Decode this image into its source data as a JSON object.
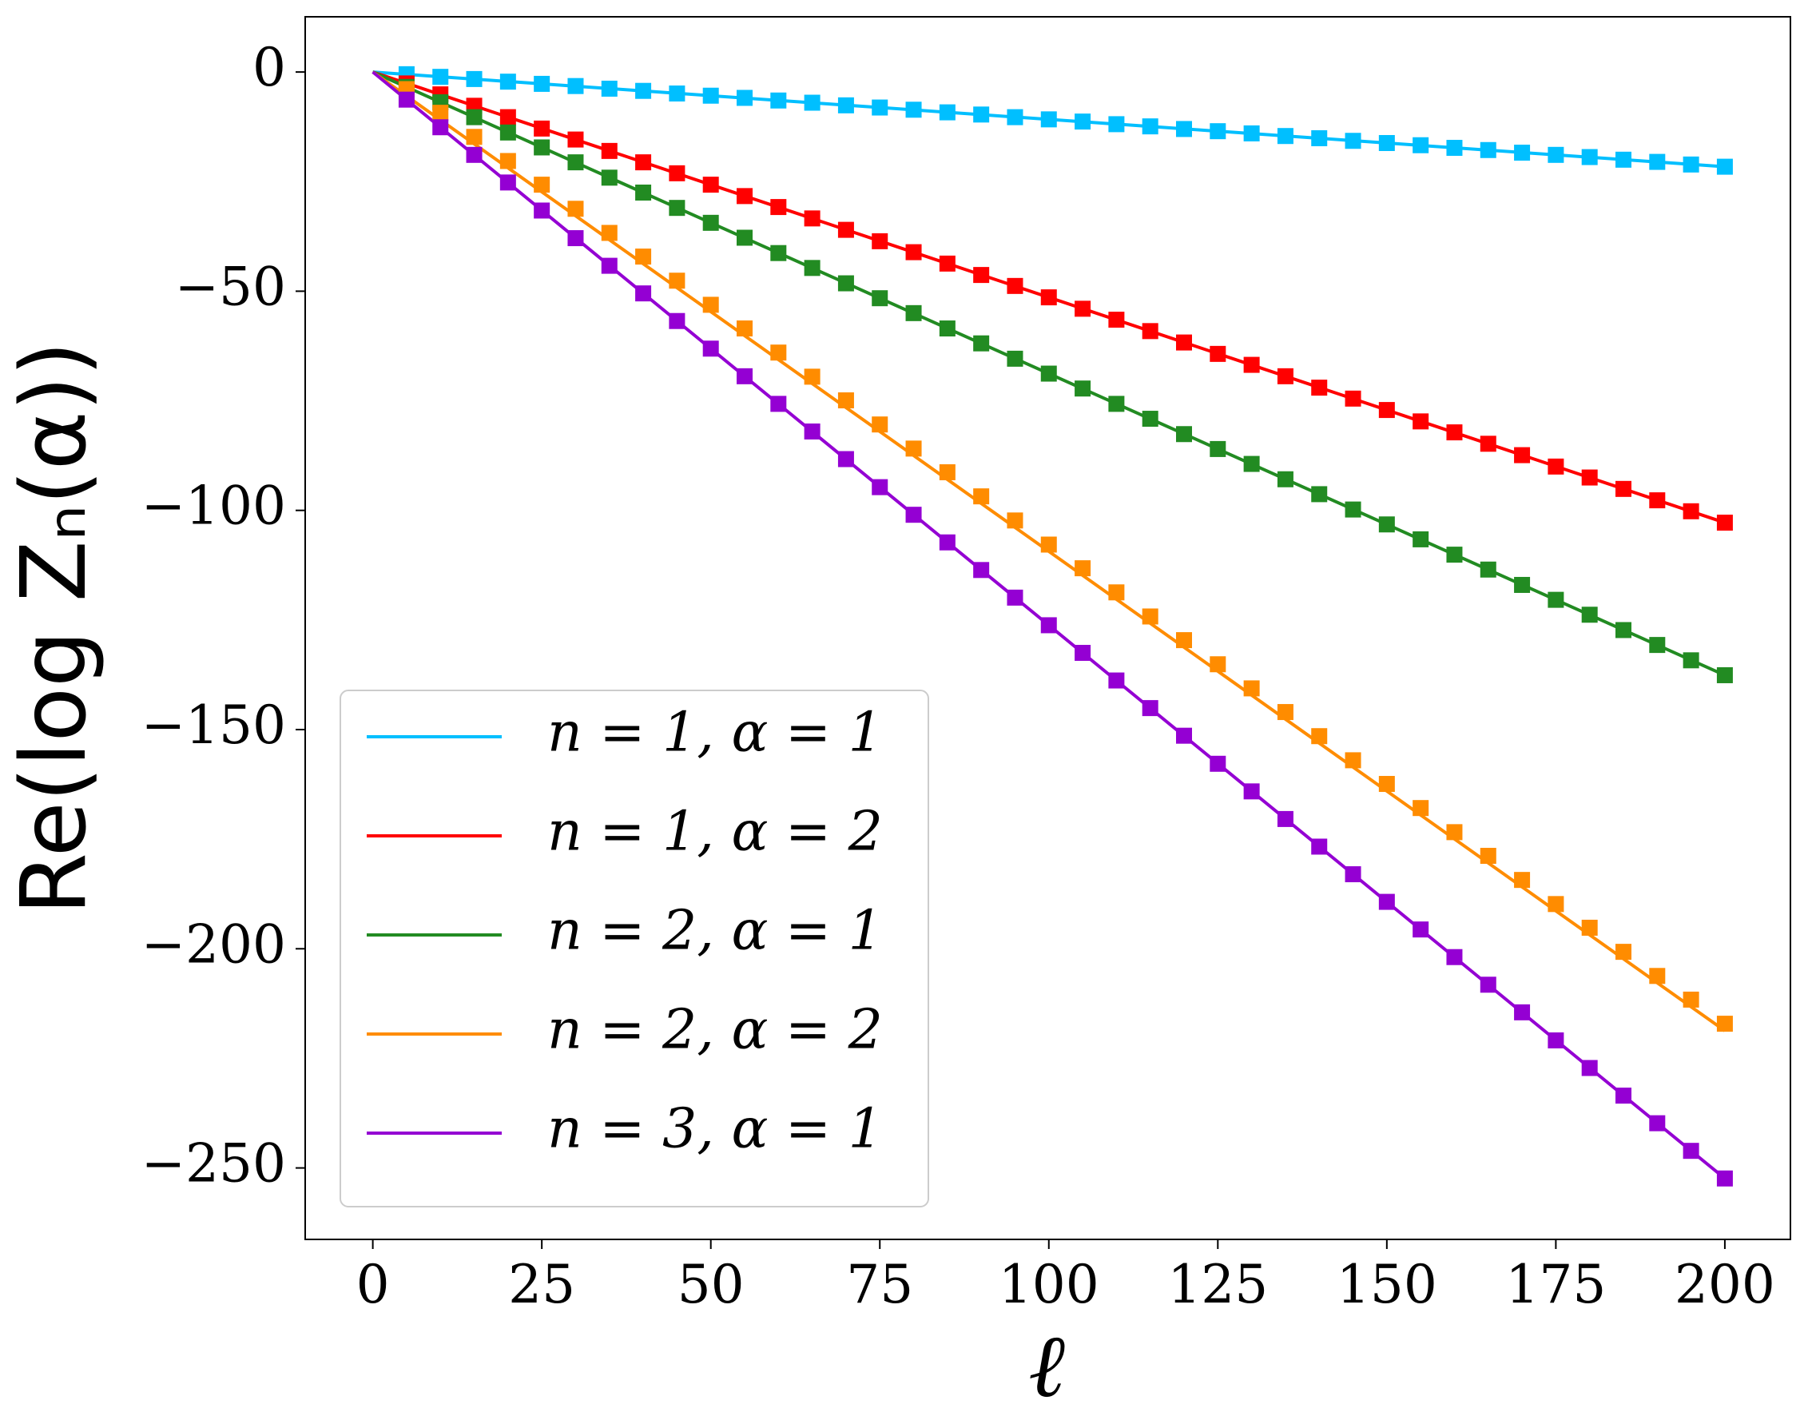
{
  "chart_data": {
    "type": "line",
    "x_label": "ℓ",
    "y_label": "Re(log Zₙ(α))",
    "xlim": [
      -10,
      209.7
    ],
    "ylim": [
      -266.3,
      12.6
    ],
    "xticks": [
      0,
      25,
      50,
      75,
      100,
      125,
      150,
      175,
      200
    ],
    "yticks": [
      0,
      {
        "value": -50,
        "label": "−50"
      },
      {
        "value": -100,
        "label": "−100"
      },
      {
        "value": -150,
        "label": "−150"
      },
      {
        "value": -200,
        "label": "−200"
      },
      {
        "value": -250,
        "label": "−250"
      }
    ],
    "legend": "lower left",
    "x": [
      5,
      10,
      15,
      20,
      25,
      30,
      35,
      40,
      45,
      50,
      55,
      60,
      65,
      70,
      75,
      80,
      85,
      90,
      95,
      100,
      105,
      110,
      115,
      120,
      125,
      130,
      135,
      140,
      145,
      150,
      155,
      160,
      165,
      170,
      175,
      180,
      185,
      190,
      195,
      200
    ],
    "series": [
      {
        "name": "n = 1, α = 1",
        "color": "#00bfff",
        "x": [
          0,
          200
        ],
        "values": [
          0,
          -21.6
        ]
      },
      {
        "name": "n = 1, α = 2",
        "color": "#ff0000",
        "x": [
          0,
          200
        ],
        "values": [
          0,
          -102.8
        ]
      },
      {
        "name": "n = 2, α = 1",
        "color": "#228b22",
        "x": [
          0,
          200
        ],
        "values": [
          0,
          -137.6
        ]
      },
      {
        "name": "n = 2, α = 2",
        "color": "#ff8c00",
        "x": [
          0,
          200
        ],
        "values": [
          0,
          -218.7
        ]
      },
      {
        "name": "n = 3, α = 1",
        "color": "#9400d3",
        "x": [
          0,
          200
        ],
        "values": [
          0,
          -252.4
        ]
      },
      {
        "color": "#00bfff",
        "marker": "square",
        "values": [
          -0.5,
          -1.1,
          -1.6,
          -2.2,
          -2.7,
          -3.2,
          -3.8,
          -4.3,
          -4.9,
          -5.4,
          -5.9,
          -6.5,
          -7.0,
          -7.6,
          -8.1,
          -8.6,
          -9.2,
          -9.7,
          -10.3,
          -10.8,
          -11.3,
          -11.9,
          -12.4,
          -13.0,
          -13.5,
          -14.0,
          -14.6,
          -15.1,
          -15.7,
          -16.2,
          -16.7,
          -17.3,
          -17.8,
          -18.4,
          -18.9,
          -19.4,
          -20.0,
          -20.5,
          -21.1,
          -21.6
        ]
      },
      {
        "color": "#ff0000",
        "marker": "square",
        "values": [
          -2.6,
          -5.1,
          -7.7,
          -10.3,
          -12.9,
          -15.4,
          -18.0,
          -20.6,
          -23.1,
          -25.7,
          -28.3,
          -30.8,
          -33.4,
          -36.0,
          -38.6,
          -41.1,
          -43.7,
          -46.3,
          -48.8,
          -51.4,
          -54.0,
          -56.5,
          -59.1,
          -61.7,
          -64.3,
          -66.8,
          -69.4,
          -72.0,
          -74.5,
          -77.1,
          -79.7,
          -82.2,
          -84.8,
          -87.4,
          -90.0,
          -92.5,
          -95.1,
          -97.7,
          -100.2,
          -102.8
        ]
      },
      {
        "color": "#228b22",
        "marker": "square",
        "values": [
          -3.4,
          -6.9,
          -10.3,
          -13.8,
          -17.2,
          -20.6,
          -24.1,
          -27.5,
          -31.0,
          -34.4,
          -37.8,
          -41.3,
          -44.7,
          -48.2,
          -51.6,
          -55.0,
          -58.5,
          -61.9,
          -65.4,
          -68.8,
          -72.2,
          -75.7,
          -79.1,
          -82.6,
          -86.0,
          -89.4,
          -92.9,
          -96.3,
          -99.8,
          -103.2,
          -106.6,
          -110.1,
          -113.5,
          -117.0,
          -120.4,
          -123.8,
          -127.3,
          -130.7,
          -134.2,
          -137.6
        ]
      },
      {
        "color": "#ff8c00",
        "marker": "square",
        "values": [
          -3.9,
          -9.3,
          -14.8,
          -20.3,
          -25.7,
          -31.2,
          -36.7,
          -42.1,
          -47.6,
          -53.1,
          -58.5,
          -64.0,
          -69.5,
          -74.9,
          -80.4,
          -85.9,
          -91.3,
          -96.8,
          -102.3,
          -107.8,
          -113.2,
          -118.7,
          -124.2,
          -129.6,
          -135.1,
          -140.6,
          -146.0,
          -151.5,
          -157.0,
          -162.4,
          -167.9,
          -173.4,
          -178.8,
          -184.3,
          -189.8,
          -195.2,
          -200.7,
          -206.2,
          -211.6,
          -217.1
        ]
      },
      {
        "color": "#9400d3",
        "marker": "square",
        "values": [
          -6.3,
          -12.6,
          -18.9,
          -25.2,
          -31.6,
          -37.9,
          -44.2,
          -50.5,
          -56.8,
          -63.1,
          -69.4,
          -75.7,
          -82.0,
          -88.3,
          -94.7,
          -101.0,
          -107.3,
          -113.6,
          -119.9,
          -126.2,
          -132.5,
          -138.8,
          -145.1,
          -151.4,
          -157.8,
          -164.1,
          -170.4,
          -176.7,
          -183.0,
          -189.3,
          -195.6,
          -201.9,
          -208.2,
          -214.5,
          -220.9,
          -227.2,
          -233.5,
          -239.8,
          -246.1,
          -252.4
        ]
      }
    ]
  }
}
